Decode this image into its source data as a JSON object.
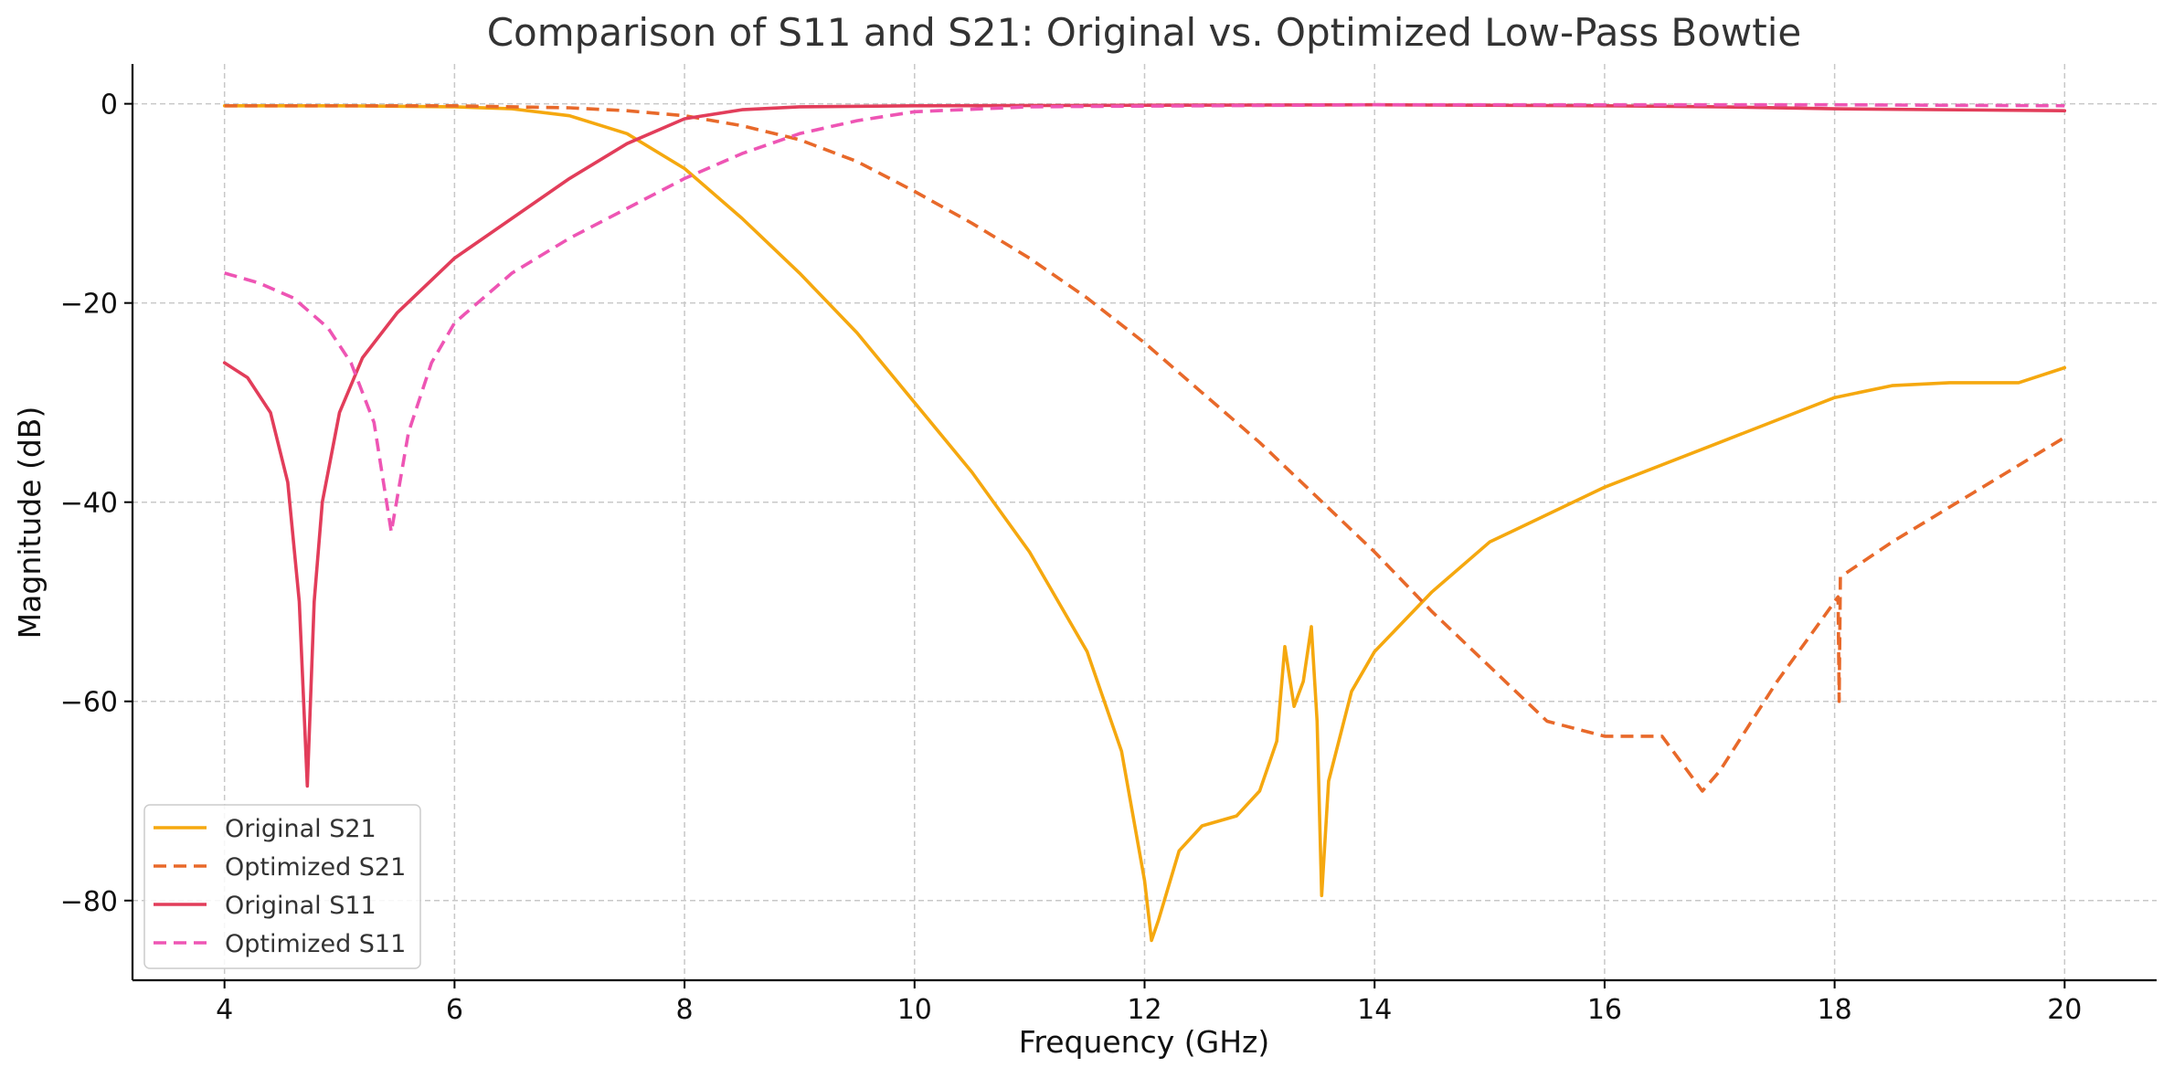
{
  "chart_data": {
    "type": "line",
    "title": "Comparison of S11 and S21: Original vs. Optimized Low-Pass Bowtie",
    "xlabel": "Frequency (GHz)",
    "ylabel": "Magnitude (dB)",
    "xlim": [
      3.2,
      20.8
    ],
    "ylim": [
      -88,
      4
    ],
    "xticks": [
      4,
      6,
      8,
      10,
      12,
      14,
      16,
      18,
      20
    ],
    "yticks": [
      0,
      -20,
      -40,
      -60,
      -80
    ],
    "xtick_labels": [
      "4",
      "6",
      "8",
      "10",
      "12",
      "14",
      "16",
      "18",
      "20"
    ],
    "ytick_labels": [
      "0",
      "−20",
      "−40",
      "−60",
      "−80"
    ],
    "grid": true,
    "legend_position": "lower-left",
    "series": [
      {
        "name": "Original S21",
        "color": "#F5A80F",
        "dash": "solid",
        "points": [
          [
            4,
            -0.2
          ],
          [
            5,
            -0.2
          ],
          [
            6,
            -0.3
          ],
          [
            6.5,
            -0.5
          ],
          [
            7,
            -1.2
          ],
          [
            7.5,
            -3
          ],
          [
            8,
            -6.5
          ],
          [
            8.5,
            -11.5
          ],
          [
            9,
            -17
          ],
          [
            9.5,
            -23
          ],
          [
            10,
            -30
          ],
          [
            10.5,
            -37
          ],
          [
            11,
            -45
          ],
          [
            11.5,
            -55
          ],
          [
            11.8,
            -65
          ],
          [
            12,
            -78
          ],
          [
            12.06,
            -84
          ],
          [
            12.12,
            -82
          ],
          [
            12.3,
            -75
          ],
          [
            12.5,
            -72.5
          ],
          [
            12.8,
            -71.5
          ],
          [
            13,
            -69
          ],
          [
            13.15,
            -64
          ],
          [
            13.22,
            -54.5
          ],
          [
            13.3,
            -60.5
          ],
          [
            13.38,
            -58
          ],
          [
            13.45,
            -52.5
          ],
          [
            13.5,
            -62
          ],
          [
            13.54,
            -79.5
          ],
          [
            13.6,
            -68
          ],
          [
            13.8,
            -59
          ],
          [
            14,
            -55
          ],
          [
            14.5,
            -49
          ],
          [
            15,
            -44
          ],
          [
            16,
            -38.5
          ],
          [
            17,
            -34
          ],
          [
            18,
            -29.5
          ],
          [
            18.5,
            -28.3
          ],
          [
            19,
            -28
          ],
          [
            19.6,
            -28
          ],
          [
            20,
            -26.5
          ]
        ]
      },
      {
        "name": "Optimized S21",
        "color": "#E8692A",
        "dash": "dashed",
        "points": [
          [
            4,
            -0.2
          ],
          [
            6,
            -0.2
          ],
          [
            7,
            -0.4
          ],
          [
            7.5,
            -0.7
          ],
          [
            8,
            -1.2
          ],
          [
            8.5,
            -2.2
          ],
          [
            9,
            -3.6
          ],
          [
            9.5,
            -5.8
          ],
          [
            10,
            -8.8
          ],
          [
            10.5,
            -12
          ],
          [
            11,
            -15.5
          ],
          [
            11.5,
            -19.5
          ],
          [
            12,
            -24
          ],
          [
            12.5,
            -29
          ],
          [
            13,
            -34
          ],
          [
            13.5,
            -39.5
          ],
          [
            14,
            -45
          ],
          [
            14.5,
            -51
          ],
          [
            15,
            -56.5
          ],
          [
            15.5,
            -62
          ],
          [
            16,
            -63.5
          ],
          [
            16.5,
            -63.5
          ],
          [
            16.85,
            -69
          ],
          [
            17,
            -67
          ],
          [
            17.5,
            -58
          ],
          [
            18,
            -50
          ],
          [
            18.03,
            -49.5
          ],
          [
            18.04,
            -60
          ],
          [
            18.05,
            -47.5
          ],
          [
            18.5,
            -44
          ],
          [
            19,
            -40.5
          ],
          [
            19.5,
            -37
          ],
          [
            20,
            -33.5
          ]
        ]
      },
      {
        "name": "Original S11",
        "color": "#E23D5A",
        "dash": "solid",
        "points": [
          [
            4,
            -26
          ],
          [
            4.2,
            -27.5
          ],
          [
            4.4,
            -31
          ],
          [
            4.55,
            -38
          ],
          [
            4.65,
            -50
          ],
          [
            4.72,
            -68.5
          ],
          [
            4.78,
            -50
          ],
          [
            4.85,
            -40
          ],
          [
            5,
            -31
          ],
          [
            5.2,
            -25.5
          ],
          [
            5.5,
            -21
          ],
          [
            6,
            -15.5
          ],
          [
            6.5,
            -11.5
          ],
          [
            7,
            -7.5
          ],
          [
            7.5,
            -4
          ],
          [
            8,
            -1.5
          ],
          [
            8.5,
            -0.6
          ],
          [
            9,
            -0.3
          ],
          [
            10,
            -0.2
          ],
          [
            14,
            -0.1
          ],
          [
            16,
            -0.2
          ],
          [
            17,
            -0.3
          ],
          [
            18,
            -0.5
          ],
          [
            20,
            -0.7
          ]
        ]
      },
      {
        "name": "Optimized S11",
        "color": "#EE55B4",
        "dash": "dashed",
        "points": [
          [
            4,
            -17
          ],
          [
            4.3,
            -18
          ],
          [
            4.6,
            -19.5
          ],
          [
            4.9,
            -22.5
          ],
          [
            5.1,
            -26
          ],
          [
            5.3,
            -32
          ],
          [
            5.45,
            -43
          ],
          [
            5.6,
            -33
          ],
          [
            5.8,
            -26
          ],
          [
            6,
            -22
          ],
          [
            6.5,
            -17
          ],
          [
            7,
            -13.5
          ],
          [
            7.5,
            -10.5
          ],
          [
            8,
            -7.5
          ],
          [
            8.5,
            -5
          ],
          [
            9,
            -3
          ],
          [
            9.5,
            -1.7
          ],
          [
            10,
            -0.8
          ],
          [
            11,
            -0.3
          ],
          [
            14,
            -0.1
          ],
          [
            18,
            -0.1
          ],
          [
            20,
            -0.2
          ]
        ]
      }
    ]
  }
}
